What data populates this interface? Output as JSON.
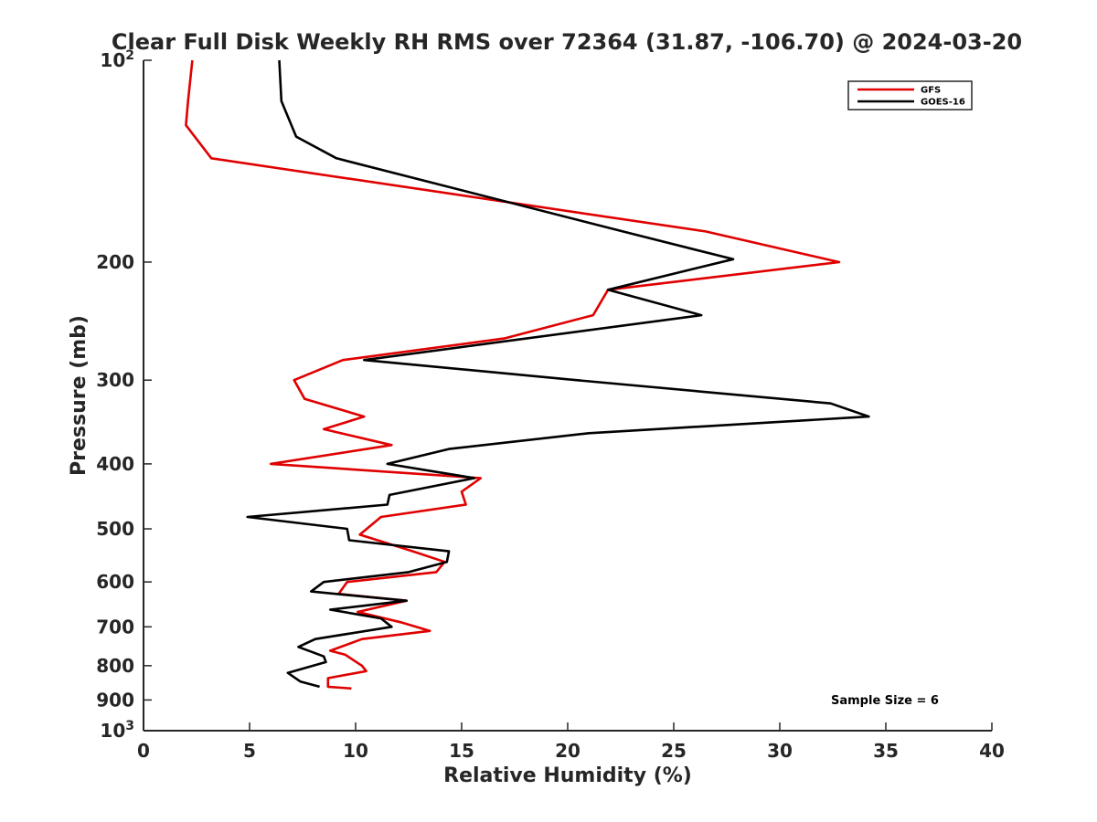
{
  "chart_data": {
    "type": "line",
    "title": "Clear Full Disk Weekly RH RMS over 72364 (31.87, -106.70) @ 2024-03-20",
    "xlabel": "Relative Humidity (%)",
    "ylabel": "Pressure (mb)",
    "xlim": [
      0,
      40
    ],
    "ylim": [
      100,
      1000
    ],
    "y_scale": "log",
    "y_reversed": true,
    "grid": false,
    "x_ticks": [
      0,
      5,
      10,
      15,
      20,
      25,
      30,
      35,
      40
    ],
    "y_ticks": [
      {
        "value": 100,
        "base": "10",
        "exp": "2"
      },
      {
        "value": 200,
        "label": "200"
      },
      {
        "value": 300,
        "label": "300"
      },
      {
        "value": 400,
        "label": "400"
      },
      {
        "value": 500,
        "label": "500"
      },
      {
        "value": 600,
        "label": "600"
      },
      {
        "value": 700,
        "label": "700"
      },
      {
        "value": 800,
        "label": "800"
      },
      {
        "value": 900,
        "label": "900"
      },
      {
        "value": 1000,
        "base": "10",
        "exp": "3"
      }
    ],
    "legend": {
      "position": "top-right"
    },
    "annotation": "Sample Size = 6",
    "series": [
      {
        "name": "GFS",
        "color": "#e00000",
        "points": [
          [
            2.3,
            100
          ],
          [
            2.1,
            115
          ],
          [
            2.0,
            125
          ],
          [
            3.2,
            140
          ],
          [
            26.5,
            180
          ],
          [
            32.8,
            200
          ],
          [
            21.9,
            220
          ],
          [
            21.2,
            240
          ],
          [
            17.0,
            260
          ],
          [
            9.4,
            280
          ],
          [
            7.1,
            300
          ],
          [
            7.6,
            320
          ],
          [
            10.4,
            340
          ],
          [
            8.5,
            355
          ],
          [
            11.7,
            375
          ],
          [
            6.0,
            400
          ],
          [
            15.9,
            420
          ],
          [
            15.0,
            440
          ],
          [
            15.2,
            460
          ],
          [
            11.2,
            480
          ],
          [
            10.2,
            510
          ],
          [
            12.7,
            540
          ],
          [
            14.2,
            560
          ],
          [
            13.8,
            580
          ],
          [
            9.6,
            600
          ],
          [
            9.2,
            625
          ],
          [
            12.4,
            640
          ],
          [
            10.1,
            665
          ],
          [
            12.2,
            690
          ],
          [
            13.5,
            710
          ],
          [
            10.3,
            730
          ],
          [
            8.8,
            760
          ],
          [
            9.5,
            770
          ],
          [
            10.3,
            800
          ],
          [
            10.5,
            815
          ],
          [
            8.7,
            835
          ],
          [
            8.7,
            860
          ],
          [
            9.8,
            865
          ]
        ]
      },
      {
        "name": "GOES-16",
        "color": "#000000",
        "points": [
          [
            6.4,
            100
          ],
          [
            6.5,
            115
          ],
          [
            7.2,
            130
          ],
          [
            9.1,
            140
          ],
          [
            22.6,
            180
          ],
          [
            27.8,
            198
          ],
          [
            21.9,
            220
          ],
          [
            26.3,
            240
          ],
          [
            10.4,
            280
          ],
          [
            20.4,
            300
          ],
          [
            32.4,
            325
          ],
          [
            34.2,
            340
          ],
          [
            21.0,
            360
          ],
          [
            14.4,
            380
          ],
          [
            11.5,
            400
          ],
          [
            15.6,
            420
          ],
          [
            11.6,
            445
          ],
          [
            11.5,
            460
          ],
          [
            4.9,
            480
          ],
          [
            9.6,
            500
          ],
          [
            9.7,
            520
          ],
          [
            14.4,
            540
          ],
          [
            14.3,
            560
          ],
          [
            12.5,
            580
          ],
          [
            8.5,
            600
          ],
          [
            7.9,
            620
          ],
          [
            12.4,
            640
          ],
          [
            8.8,
            660
          ],
          [
            11.2,
            680
          ],
          [
            11.7,
            700
          ],
          [
            8.1,
            730
          ],
          [
            7.3,
            750
          ],
          [
            8.5,
            775
          ],
          [
            8.6,
            790
          ],
          [
            6.8,
            820
          ],
          [
            7.4,
            845
          ],
          [
            8.3,
            860
          ]
        ]
      }
    ]
  }
}
